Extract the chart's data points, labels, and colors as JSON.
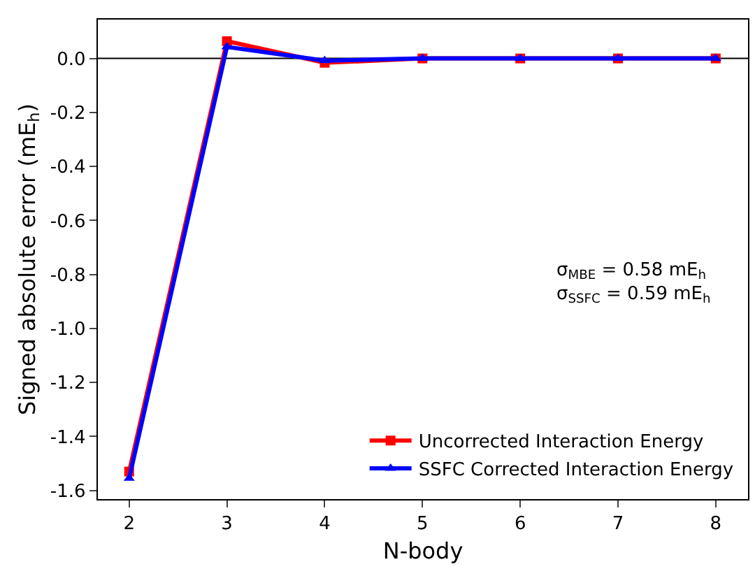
{
  "chart_data": {
    "type": "line",
    "xlabel": "N-body",
    "ylabel": "Signed absolute error (mE$_{h}$)",
    "x": [
      2,
      3,
      4,
      5,
      6,
      7,
      8
    ],
    "series": [
      {
        "name": "Uncorrected Interaction Energy",
        "color": "#ff0000",
        "marker": "square",
        "values": [
          -1.53,
          0.064,
          -0.016,
          0.0,
          0.0,
          0.0,
          0.0
        ]
      },
      {
        "name": "SSFC Corrected Interaction Energy",
        "color": "#0000ff",
        "marker": "triangle",
        "values": [
          -1.555,
          0.043,
          -0.008,
          0.0,
          0.0,
          0.0,
          0.0
        ]
      }
    ],
    "xlim": [
      1.68,
      8.33
    ],
    "xticks": [
      2,
      3,
      4,
      5,
      6,
      7,
      8
    ],
    "ylim": [
      -1.632,
      0.144
    ],
    "yticks": [
      -1.6,
      -1.4,
      -1.2,
      {
        "value": -1,
        "label": "-1.0"
      },
      -0.8,
      -0.6,
      -0.4,
      -0.2,
      {
        "value": 0,
        "label": "0.0"
      }
    ],
    "ref_lines": [
      {
        "axis": "y",
        "value": 0,
        "color": "#000000"
      }
    ],
    "annotations": [
      "σ$_{MBE}$ = 0.58 mE$_{h}$",
      "σ$_{SSFC}$ = 0.59 mE$_{h}$"
    ],
    "legend": "bottom right",
    "grid": false,
    "line_style": "solid"
  }
}
